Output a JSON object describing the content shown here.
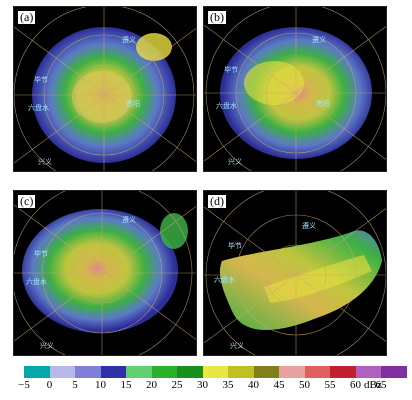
{
  "panels": [
    {
      "label": "(a)",
      "places": [
        "遵义",
        "毕节",
        "六盘水",
        "兴义",
        "贵阳"
      ]
    },
    {
      "label": "(b)",
      "places": [
        "遵义",
        "毕节",
        "六盘水",
        "兴义",
        "贵阳"
      ]
    },
    {
      "label": "(c)",
      "places": [
        "遵义",
        "毕节",
        "六盘水",
        "兴义"
      ]
    },
    {
      "label": "(d)",
      "places": [
        "遵义",
        "毕节",
        "六盘水",
        "兴义"
      ]
    }
  ],
  "colorbar": {
    "colors": [
      "#00a8a8",
      "#b8b8e8",
      "#8080d8",
      "#3030a8",
      "#60d070",
      "#28b028",
      "#18901c",
      "#e8e840",
      "#c0c020",
      "#808018",
      "#e8a0a0",
      "#e06060",
      "#c02030",
      "#b060c0",
      "#8030a0"
    ],
    "tick_labels": [
      "−5",
      "0",
      "5",
      "10",
      "15",
      "20",
      "25",
      "30",
      "35",
      "40",
      "45",
      "50",
      "55",
      "60",
      "65"
    ],
    "unit": "dBz"
  }
}
